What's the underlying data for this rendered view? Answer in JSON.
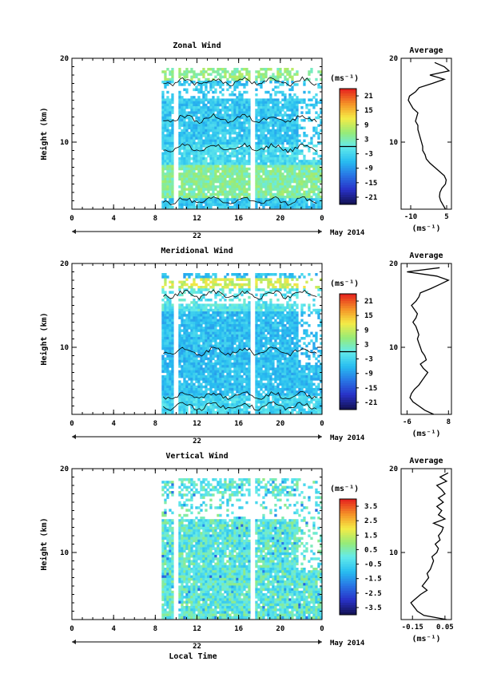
{
  "chart_data": [
    {
      "type": "heatmap",
      "title": "Zonal Wind",
      "ylabel": "Height (km)",
      "xlabel": "",
      "xlim": [
        0,
        24
      ],
      "ylim": [
        2,
        20
      ],
      "xticks": [
        "0",
        "4",
        "8",
        "12",
        "16",
        "20",
        "0"
      ],
      "xtick_values": [
        0,
        4,
        8,
        12,
        16,
        20,
        24
      ],
      "yticks": [
        "10",
        "20"
      ],
      "ytick_values": [
        10,
        20
      ],
      "date_label": "22",
      "month_label": "May 2014",
      "colorbar": {
        "unit": "(ms⁻¹)",
        "range": [
          -24,
          24
        ],
        "ticks": [
          "21",
          "15",
          "9",
          "3",
          "-3",
          "-9",
          "-15",
          "-21"
        ],
        "tick_values": [
          21,
          15,
          9,
          3,
          -3,
          -9,
          -15,
          -21
        ],
        "zero_line": 0
      },
      "data_coverage": {
        "x_range": [
          8,
          24
        ],
        "gaps_x": [
          [
            9.6,
            10.2
          ],
          [
            17.1,
            17.5
          ]
        ],
        "dominant_values": "mostly -9 to 3 ms-1 below 15 km, near 0 to 9 around 4-7 km"
      },
      "profile": {
        "title": "Average",
        "xlabel": "(ms⁻¹)",
        "xlim": [
          -14,
          7
        ],
        "xticks": [
          "-10",
          "5"
        ],
        "xtick_values": [
          -10,
          5
        ],
        "yticks": [
          "10",
          "20"
        ],
        "ytick_values": [
          10,
          20
        ],
        "heights": [
          2.0,
          2.5,
          3.0,
          3.5,
          4.0,
          4.5,
          5.0,
          5.5,
          6.0,
          6.5,
          7.0,
          7.5,
          8.0,
          8.5,
          9.0,
          9.5,
          10.0,
          10.5,
          11.0,
          11.5,
          12.0,
          12.5,
          13.0,
          13.5,
          14.0,
          14.5,
          15.0,
          15.5,
          16.0,
          16.5,
          17.0,
          17.5,
          18.0,
          18.5,
          19.0,
          19.5
        ],
        "values": [
          4.5,
          3.5,
          2.5,
          2.0,
          2.2,
          3.0,
          4.5,
          4.8,
          4.0,
          2.0,
          0.0,
          -2.0,
          -3.5,
          -4.0,
          -5.0,
          -5.0,
          -5.5,
          -6.0,
          -6.5,
          -7.0,
          -7.0,
          -8.0,
          -7.5,
          -7.0,
          -9.0,
          -10.0,
          -11.0,
          -10.5,
          -8.0,
          -6.5,
          -1.0,
          4.0,
          -2.0,
          6.0,
          4.0,
          0.0
        ]
      }
    },
    {
      "type": "heatmap",
      "title": "Meridional Wind",
      "ylabel": "Height (km)",
      "xlabel": "",
      "xlim": [
        0,
        24
      ],
      "ylim": [
        2,
        20
      ],
      "xticks": [
        "0",
        "4",
        "8",
        "12",
        "16",
        "20",
        "0"
      ],
      "xtick_values": [
        0,
        4,
        8,
        12,
        16,
        20,
        24
      ],
      "yticks": [
        "10",
        "20"
      ],
      "ytick_values": [
        10,
        20
      ],
      "date_label": "22",
      "month_label": "May 2014",
      "colorbar": {
        "unit": "(ms⁻¹)",
        "range": [
          -24,
          24
        ],
        "ticks": [
          "21",
          "15",
          "9",
          "3",
          "-3",
          "-9",
          "-15",
          "-21"
        ],
        "tick_values": [
          21,
          15,
          9,
          3,
          -3,
          -9,
          -15,
          -21
        ],
        "zero_line": 0
      },
      "data_coverage": {
        "x_range": [
          8,
          24
        ],
        "gaps_x": [
          [
            9.6,
            10.2
          ],
          [
            17.1,
            17.5
          ]
        ],
        "dominant_values": "mostly -9 to -3 ms-1 at 4-15 km, positive near 18 km"
      },
      "profile": {
        "title": "Average",
        "xlabel": "(ms⁻¹)",
        "xlim": [
          -8,
          9
        ],
        "xticks": [
          "-6",
          "8"
        ],
        "xtick_values": [
          -6,
          8
        ],
        "yticks": [
          "10",
          "20"
        ],
        "ytick_values": [
          10,
          20
        ],
        "heights": [
          2.0,
          2.5,
          3.0,
          3.5,
          4.0,
          4.5,
          5.0,
          5.5,
          6.0,
          6.5,
          7.0,
          7.5,
          8.0,
          8.5,
          9.0,
          9.5,
          10.0,
          10.5,
          11.0,
          11.5,
          12.0,
          12.5,
          13.0,
          13.5,
          14.0,
          14.5,
          15.0,
          15.5,
          16.0,
          16.5,
          17.0,
          17.5,
          18.0,
          18.5,
          19.0,
          19.5
        ],
        "values": [
          3.0,
          0.0,
          -2.0,
          -4.0,
          -5.0,
          -4.5,
          -3.5,
          -2.0,
          -1.0,
          0.0,
          1.0,
          -0.5,
          -1.5,
          0.5,
          0.0,
          -1.0,
          -1.5,
          -2.0,
          -2.5,
          -2.0,
          -2.5,
          -3.0,
          -4.0,
          -3.0,
          -2.5,
          -3.5,
          -4.5,
          -3.0,
          -2.0,
          -1.5,
          2.0,
          5.0,
          8.0,
          4.0,
          -6.0,
          5.0
        ]
      }
    },
    {
      "type": "heatmap",
      "title": "Vertical Wind",
      "ylabel": "Height (km)",
      "xlabel": "Local Time",
      "xlim": [
        0,
        24
      ],
      "ylim": [
        2,
        20
      ],
      "xticks": [
        "0",
        "4",
        "8",
        "12",
        "16",
        "20",
        "0"
      ],
      "xtick_values": [
        0,
        4,
        8,
        12,
        16,
        20,
        24
      ],
      "yticks": [
        "10",
        "20"
      ],
      "ytick_values": [
        10,
        20
      ],
      "date_label": "22",
      "month_label": "May 2014",
      "colorbar": {
        "unit": "(ms⁻¹)",
        "range": [
          -4,
          4
        ],
        "ticks": [
          "3.5",
          "2.5",
          "1.5",
          "0.5",
          "-0.5",
          "-1.5",
          "-2.5",
          "-3.5"
        ],
        "tick_values": [
          3.5,
          2.5,
          1.5,
          0.5,
          -0.5,
          -1.5,
          -2.5,
          -3.5
        ],
        "zero_line": null
      },
      "data_coverage": {
        "x_range": [
          8,
          24
        ],
        "gaps_x": [
          [
            9.6,
            10.2
          ],
          [
            17.1,
            17.5
          ]
        ],
        "dominant_values": "mostly -0.5 to 0.5 ms-1"
      },
      "profile": {
        "title": "Average",
        "xlabel": "(ms⁻¹)",
        "xlim": [
          -0.22,
          0.09
        ],
        "xticks": [
          "-0.15",
          "0.05"
        ],
        "xtick_values": [
          -0.15,
          0.05
        ],
        "yticks": [
          "10",
          "20"
        ],
        "ytick_values": [
          10,
          20
        ],
        "heights": [
          2.0,
          2.5,
          3.0,
          3.5,
          4.0,
          4.5,
          5.0,
          5.5,
          6.0,
          6.5,
          7.0,
          7.5,
          8.0,
          8.5,
          9.0,
          9.5,
          10.0,
          10.5,
          11.0,
          11.5,
          12.0,
          12.5,
          13.0,
          13.5,
          14.0,
          14.5,
          15.0,
          15.5,
          16.0,
          16.5,
          17.0,
          17.5,
          18.0,
          18.5,
          19.0,
          19.5
        ],
        "values": [
          0.06,
          -0.08,
          -0.12,
          -0.14,
          -0.16,
          -0.13,
          -0.1,
          -0.06,
          -0.09,
          -0.07,
          -0.05,
          -0.06,
          -0.04,
          -0.03,
          -0.02,
          -0.03,
          0.0,
          0.01,
          -0.01,
          0.02,
          0.01,
          0.03,
          0.04,
          -0.02,
          0.05,
          0.01,
          0.03,
          0.0,
          0.04,
          0.01,
          0.05,
          0.03,
          0.0,
          0.06,
          0.02,
          0.07
        ]
      }
    }
  ]
}
